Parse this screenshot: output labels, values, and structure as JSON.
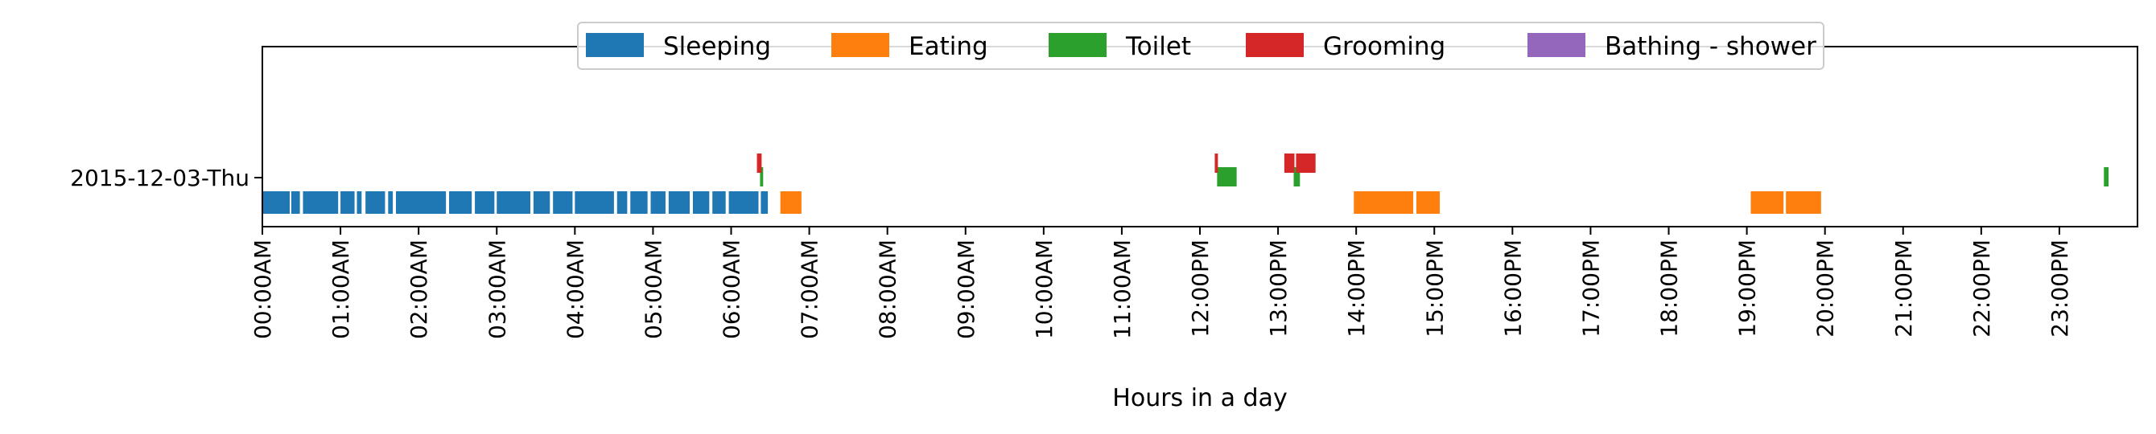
{
  "chart_data": {
    "type": "timeline",
    "title": "",
    "xlabel": "Hours in a day",
    "ylabel": "",
    "x_unit": "hours",
    "xlim": [
      0,
      24
    ],
    "xticks": [
      "00:00AM",
      "01:00AM",
      "02:00AM",
      "03:00AM",
      "04:00AM",
      "05:00AM",
      "06:00AM",
      "07:00AM",
      "08:00AM",
      "09:00AM",
      "10:00AM",
      "11:00AM",
      "12:00PM",
      "13:00PM",
      "14:00PM",
      "15:00PM",
      "16:00PM",
      "17:00PM",
      "18:00PM",
      "19:00PM",
      "20:00PM",
      "21:00PM",
      "22:00PM",
      "23:00PM"
    ],
    "rows": [
      "2015-12-03-Thu"
    ],
    "grid": false,
    "legend_position": "top-center",
    "series": [
      {
        "name": "Sleeping",
        "color": "#1f77b4",
        "lane": 0,
        "segments": [
          [
            0.0,
            0.35
          ],
          [
            0.37,
            0.48
          ],
          [
            0.52,
            0.97
          ],
          [
            1.0,
            1.18
          ],
          [
            1.21,
            1.27
          ],
          [
            1.32,
            1.57
          ],
          [
            1.61,
            1.67
          ],
          [
            1.71,
            2.35
          ],
          [
            2.39,
            2.68
          ],
          [
            2.72,
            2.97
          ],
          [
            3.0,
            3.43
          ],
          [
            3.47,
            3.68
          ],
          [
            3.72,
            3.97
          ],
          [
            4.0,
            4.5
          ],
          [
            4.54,
            4.67
          ],
          [
            4.71,
            4.93
          ],
          [
            4.97,
            5.16
          ],
          [
            5.2,
            5.47
          ],
          [
            5.51,
            5.72
          ],
          [
            5.76,
            5.93
          ],
          [
            5.97,
            6.35
          ],
          [
            6.38,
            6.47
          ]
        ]
      },
      {
        "name": "Eating",
        "color": "#ff7f0e",
        "lane": 0,
        "segments": [
          [
            6.63,
            6.9
          ],
          [
            13.97,
            14.73
          ],
          [
            14.77,
            15.07
          ],
          [
            19.05,
            19.47
          ],
          [
            19.5,
            19.95
          ]
        ]
      },
      {
        "name": "Toilet",
        "color": "#2ca02c",
        "lane": 1,
        "segments": [
          [
            6.37,
            6.41
          ],
          [
            12.22,
            12.47
          ],
          [
            13.2,
            13.28
          ],
          [
            23.57,
            23.63
          ]
        ]
      },
      {
        "name": "Grooming",
        "color": "#d62728",
        "lane": 2,
        "segments": [
          [
            6.33,
            6.39
          ],
          [
            12.19,
            12.23
          ],
          [
            13.08,
            13.21
          ],
          [
            13.23,
            13.48
          ]
        ]
      },
      {
        "name": "Bathing - shower",
        "color": "#9467bd",
        "lane": 0,
        "segments": []
      }
    ]
  }
}
